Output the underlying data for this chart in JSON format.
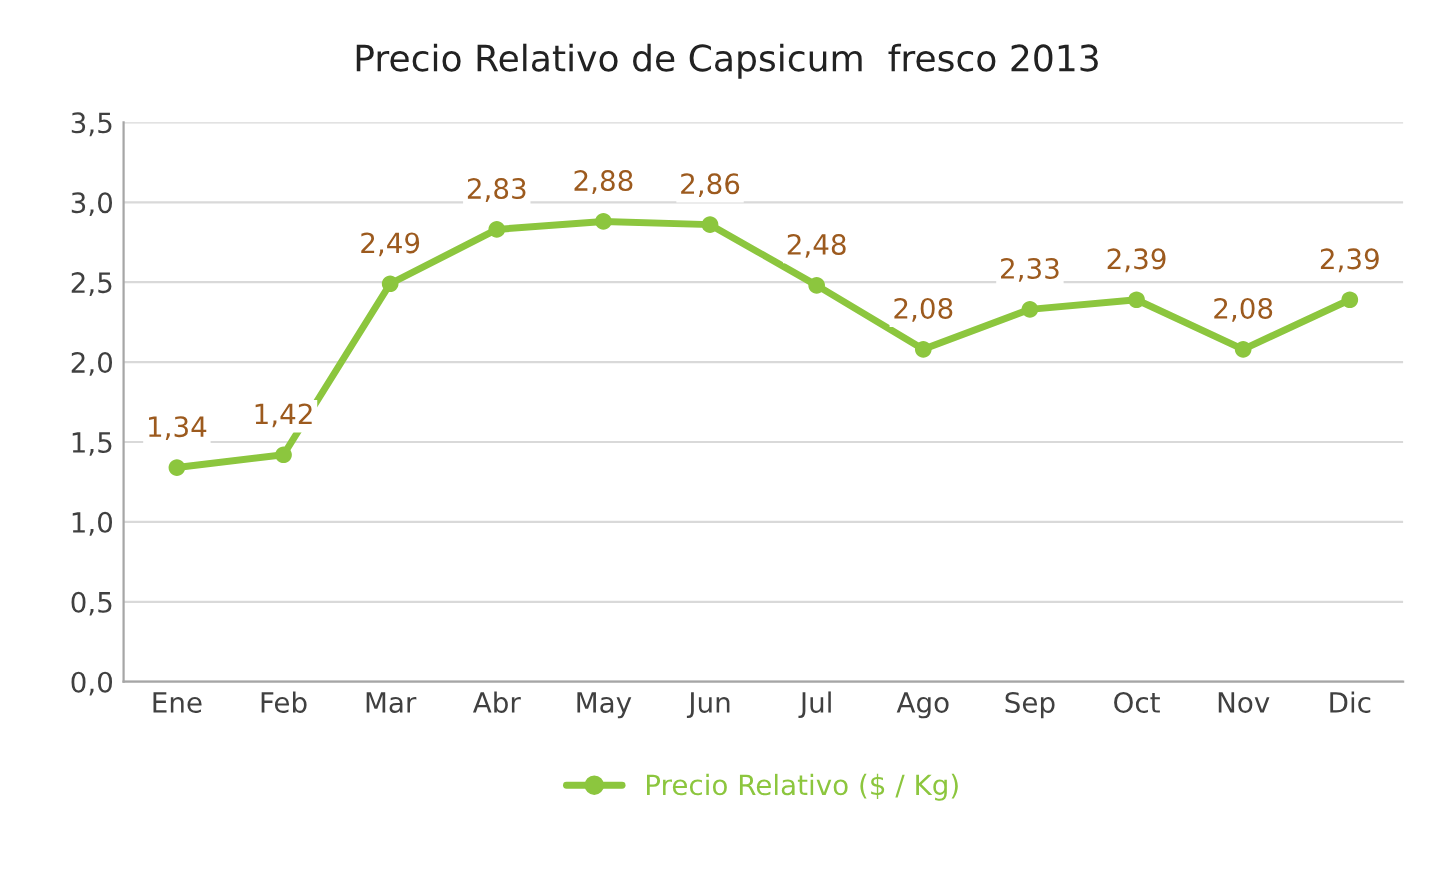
{
  "chart_data": {
    "type": "line",
    "title": "Precio Relativo de Capsicum  fresco 2013",
    "categories": [
      "Ene",
      "Feb",
      "Mar",
      "Abr",
      "May",
      "Jun",
      "Jul",
      "Ago",
      "Sep",
      "Oct",
      "Nov",
      "Dic"
    ],
    "series": [
      {
        "name": "Precio Relativo ($ / Kg)",
        "color": "#8cc63e",
        "values": [
          1.34,
          1.42,
          2.49,
          2.83,
          2.88,
          2.86,
          2.48,
          2.08,
          2.33,
          2.39,
          2.08,
          2.39
        ],
        "value_labels": [
          "1,34",
          "1,42",
          "2,49",
          "2,83",
          "2,88",
          "2,86",
          "2,48",
          "2,08",
          "2,33",
          "2,39",
          "2,08",
          "2,39"
        ]
      }
    ],
    "ylim": [
      0,
      3.5
    ],
    "yticks": [
      {
        "value": 0,
        "label": "0,0"
      },
      {
        "value": 0.5,
        "label": "0,5"
      },
      {
        "value": 1,
        "label": "1,0"
      },
      {
        "value": 1.5,
        "label": "1,5"
      },
      {
        "value": 2,
        "label": "2,0"
      },
      {
        "value": 2.5,
        "label": "2,5"
      },
      {
        "value": 3,
        "label": "3,0"
      },
      {
        "value": 3.5,
        "label": "3,5"
      }
    ],
    "grid": "y",
    "legend": "bottom",
    "marker": "circle",
    "line_style": "solid"
  }
}
